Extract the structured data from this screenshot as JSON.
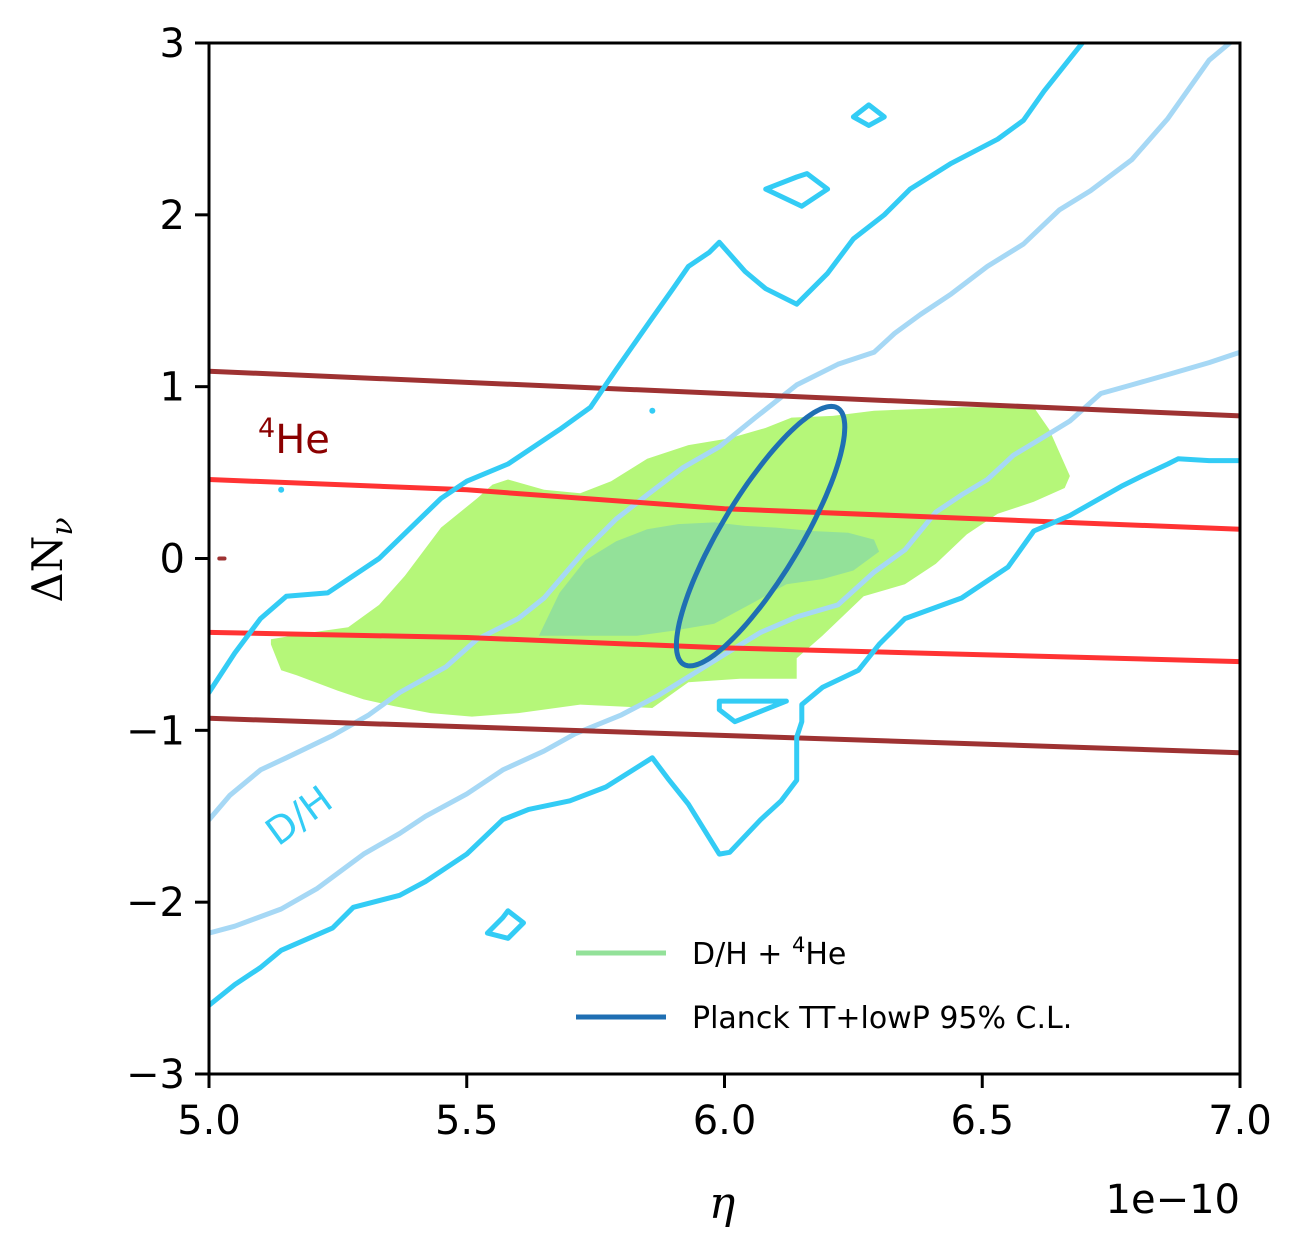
{
  "chart_data": {
    "type": "contour",
    "xlabel": "η",
    "ylabel": "ΔN",
    "ylabel_sub": "ν",
    "x_offset_label": "1e−10",
    "xlim": [
      5.0,
      7.0
    ],
    "ylim": [
      -3,
      3
    ],
    "x_scale": 1e-10,
    "xticks": [
      5.0,
      5.5,
      6.0,
      6.5,
      7.0
    ],
    "xtick_labels": [
      "5.0",
      "5.5",
      "6.0",
      "6.5",
      "7.0"
    ],
    "yticks": [
      -3,
      -2,
      -1,
      0,
      1,
      2,
      3
    ],
    "ytick_labels": [
      "−3",
      "−2",
      "−1",
      "0",
      "1",
      "2",
      "3"
    ],
    "colors": {
      "dh": "#33ccf5",
      "dh_light": "#a6d8f5",
      "he_outer": "#9e3232",
      "he_inner": "#ff3333",
      "combined_outer": "#b5f779",
      "combined_inner": "#93e199",
      "planck": "#1f6fb3",
      "he_label": "#8b0000"
    },
    "annotations": {
      "he_label_sup": "4",
      "he_label": "He",
      "dh_label": "D/H"
    },
    "legend": [
      {
        "name": "D/H + ",
        "sup": "4",
        "tail": "He",
        "color": "#93e199"
      },
      {
        "name": "Planck TT+lowP 95% C.L.",
        "color": "#1f6fb3"
      }
    ],
    "series": {
      "dh_outer_upper": [
        [
          5.0,
          -0.78
        ],
        [
          5.05,
          -0.55
        ],
        [
          5.1,
          -0.35
        ],
        [
          5.15,
          -0.22
        ],
        [
          5.23,
          -0.2
        ],
        [
          5.33,
          0.0
        ],
        [
          5.45,
          0.35
        ],
        [
          5.5,
          0.45
        ],
        [
          5.58,
          0.55
        ],
        [
          5.68,
          0.75
        ],
        [
          5.74,
          0.88
        ],
        [
          5.79,
          1.1
        ],
        [
          5.86,
          1.4
        ],
        [
          5.9,
          1.57
        ],
        [
          5.93,
          1.7
        ],
        [
          5.97,
          1.78
        ],
        [
          5.99,
          1.84
        ],
        [
          6.04,
          1.67
        ],
        [
          6.08,
          1.57
        ],
        [
          6.14,
          1.48
        ],
        [
          6.2,
          1.66
        ],
        [
          6.25,
          1.86
        ],
        [
          6.31,
          2.0
        ],
        [
          6.36,
          2.15
        ],
        [
          6.44,
          2.3
        ],
        [
          6.53,
          2.44
        ],
        [
          6.58,
          2.55
        ],
        [
          6.62,
          2.72
        ],
        [
          6.71,
          3.06
        ]
      ],
      "dh_outer_lower": [
        [
          5.0,
          -2.6
        ],
        [
          5.05,
          -2.48
        ],
        [
          5.1,
          -2.38
        ],
        [
          5.14,
          -2.28
        ],
        [
          5.24,
          -2.15
        ],
        [
          5.28,
          -2.03
        ],
        [
          5.37,
          -1.96
        ],
        [
          5.42,
          -1.88
        ],
        [
          5.5,
          -1.72
        ],
        [
          5.57,
          -1.52
        ],
        [
          5.62,
          -1.46
        ],
        [
          5.7,
          -1.41
        ],
        [
          5.77,
          -1.33
        ],
        [
          5.86,
          -1.16
        ],
        [
          5.89,
          -1.28
        ],
        [
          5.93,
          -1.43
        ],
        [
          5.99,
          -1.72
        ],
        [
          6.01,
          -1.71
        ],
        [
          6.07,
          -1.52
        ],
        [
          6.11,
          -1.41
        ],
        [
          6.14,
          -1.29
        ],
        [
          6.14,
          -1.04
        ],
        [
          6.15,
          -0.95
        ],
        [
          6.15,
          -0.85
        ],
        [
          6.19,
          -0.75
        ],
        [
          6.26,
          -0.65
        ],
        [
          6.3,
          -0.5
        ],
        [
          6.35,
          -0.35
        ],
        [
          6.46,
          -0.23
        ],
        [
          6.55,
          -0.05
        ],
        [
          6.6,
          0.16
        ],
        [
          6.67,
          0.25
        ],
        [
          6.77,
          0.42
        ],
        [
          6.81,
          0.48
        ],
        [
          6.86,
          0.55
        ],
        [
          6.88,
          0.58
        ],
        [
          6.94,
          0.57
        ],
        [
          7.0,
          0.57
        ]
      ],
      "dh_inner_upper": [
        [
          5.0,
          -1.52
        ],
        [
          5.04,
          -1.38
        ],
        [
          5.1,
          -1.23
        ],
        [
          5.15,
          -1.16
        ],
        [
          5.24,
          -1.03
        ],
        [
          5.31,
          -0.91
        ],
        [
          5.37,
          -0.78
        ],
        [
          5.46,
          -0.63
        ],
        [
          5.52,
          -0.47
        ],
        [
          5.6,
          -0.35
        ],
        [
          5.65,
          -0.23
        ],
        [
          5.73,
          0.05
        ],
        [
          5.79,
          0.23
        ],
        [
          5.85,
          0.37
        ],
        [
          5.92,
          0.53
        ],
        [
          5.99,
          0.65
        ],
        [
          6.06,
          0.82
        ],
        [
          6.14,
          1.01
        ],
        [
          6.22,
          1.13
        ],
        [
          6.29,
          1.2
        ],
        [
          6.33,
          1.31
        ],
        [
          6.38,
          1.42
        ],
        [
          6.44,
          1.54
        ],
        [
          6.51,
          1.7
        ],
        [
          6.58,
          1.83
        ],
        [
          6.65,
          2.03
        ],
        [
          6.71,
          2.14
        ],
        [
          6.79,
          2.32
        ],
        [
          6.86,
          2.56
        ],
        [
          6.94,
          2.9
        ],
        [
          7.0,
          3.05
        ]
      ],
      "dh_inner_lower": [
        [
          5.0,
          -2.18
        ],
        [
          5.05,
          -2.14
        ],
        [
          5.14,
          -2.04
        ],
        [
          5.21,
          -1.92
        ],
        [
          5.3,
          -1.72
        ],
        [
          5.37,
          -1.6
        ],
        [
          5.42,
          -1.5
        ],
        [
          5.5,
          -1.37
        ],
        [
          5.57,
          -1.23
        ],
        [
          5.65,
          -1.12
        ],
        [
          5.71,
          -1.02
        ],
        [
          5.8,
          -0.91
        ],
        [
          5.87,
          -0.8
        ],
        [
          5.94,
          -0.67
        ],
        [
          6.01,
          -0.54
        ],
        [
          6.07,
          -0.43
        ],
        [
          6.14,
          -0.34
        ],
        [
          6.22,
          -0.27
        ],
        [
          6.29,
          -0.08
        ],
        [
          6.35,
          0.05
        ],
        [
          6.41,
          0.27
        ],
        [
          6.46,
          0.37
        ],
        [
          6.51,
          0.46
        ],
        [
          6.56,
          0.6
        ],
        [
          6.61,
          0.69
        ],
        [
          6.67,
          0.8
        ],
        [
          6.73,
          0.96
        ],
        [
          6.79,
          1.01
        ],
        [
          6.86,
          1.07
        ],
        [
          6.94,
          1.14
        ],
        [
          7.0,
          1.2
        ]
      ],
      "dh_islands": [
        [
          [
            5.54,
            -2.18
          ],
          [
            5.57,
            -2.09
          ],
          [
            5.58,
            -2.05
          ],
          [
            5.61,
            -2.12
          ],
          [
            5.58,
            -2.21
          ],
          [
            5.54,
            -2.18
          ]
        ],
        [
          [
            6.08,
            2.15
          ],
          [
            6.14,
            2.22
          ],
          [
            6.16,
            2.24
          ],
          [
            6.2,
            2.15
          ],
          [
            6.15,
            2.05
          ],
          [
            6.08,
            2.15
          ]
        ],
        [
          [
            6.25,
            2.57
          ],
          [
            6.28,
            2.64
          ],
          [
            6.31,
            2.57
          ],
          [
            6.28,
            2.52
          ],
          [
            6.25,
            2.57
          ]
        ],
        [
          [
            5.99,
            -0.88
          ],
          [
            5.99,
            -0.83
          ],
          [
            6.12,
            -0.83
          ],
          [
            6.02,
            -0.95
          ],
          [
            5.99,
            -0.88
          ]
        ]
      ],
      "dh_dots": [
        [
          5.86,
          0.86
        ],
        [
          5.14,
          0.4
        ]
      ],
      "he_outer_upper": [
        [
          5.0,
          1.09
        ],
        [
          7.0,
          0.83
        ]
      ],
      "he_outer_lower": [
        [
          5.0,
          -0.93
        ],
        [
          7.0,
          -1.13
        ]
      ],
      "he_inner_upper": [
        [
          5.0,
          0.46
        ],
        [
          5.5,
          0.4
        ],
        [
          6.0,
          0.29
        ],
        [
          6.5,
          0.23
        ],
        [
          7.0,
          0.17
        ]
      ],
      "he_inner_lower": [
        [
          5.0,
          -0.43
        ],
        [
          5.5,
          -0.46
        ],
        [
          6.0,
          -0.52
        ],
        [
          6.5,
          -0.56
        ],
        [
          7.0,
          -0.6
        ]
      ],
      "he_tick": [
        [
          5.02,
          0.0
        ],
        [
          5.03,
          0.0
        ]
      ],
      "combined_outer": [
        [
          5.12,
          -0.47
        ],
        [
          5.2,
          -0.43
        ],
        [
          5.27,
          -0.4
        ],
        [
          5.33,
          -0.27
        ],
        [
          5.38,
          -0.1
        ],
        [
          5.45,
          0.18
        ],
        [
          5.52,
          0.35
        ],
        [
          5.55,
          0.43
        ],
        [
          5.58,
          0.46
        ],
        [
          5.65,
          0.4
        ],
        [
          5.72,
          0.38
        ],
        [
          5.78,
          0.45
        ],
        [
          5.85,
          0.58
        ],
        [
          5.93,
          0.66
        ],
        [
          6.01,
          0.7
        ],
        [
          6.08,
          0.76
        ],
        [
          6.13,
          0.82
        ],
        [
          6.21,
          0.83
        ],
        [
          6.29,
          0.86
        ],
        [
          6.38,
          0.87
        ],
        [
          6.46,
          0.88
        ],
        [
          6.54,
          0.88
        ],
        [
          6.6,
          0.88
        ],
        [
          6.63,
          0.75
        ],
        [
          6.67,
          0.48
        ],
        [
          6.66,
          0.41
        ],
        [
          6.6,
          0.33
        ],
        [
          6.53,
          0.26
        ],
        [
          6.47,
          0.14
        ],
        [
          6.41,
          -0.03
        ],
        [
          6.35,
          -0.15
        ],
        [
          6.27,
          -0.22
        ],
        [
          6.19,
          -0.45
        ],
        [
          6.14,
          -0.58
        ],
        [
          6.14,
          -0.7
        ],
        [
          6.03,
          -0.7
        ],
        [
          5.93,
          -0.72
        ],
        [
          5.86,
          -0.87
        ],
        [
          5.72,
          -0.85
        ],
        [
          5.6,
          -0.9
        ],
        [
          5.51,
          -0.92
        ],
        [
          5.43,
          -0.9
        ],
        [
          5.36,
          -0.86
        ],
        [
          5.3,
          -0.82
        ],
        [
          5.25,
          -0.77
        ],
        [
          5.17,
          -0.68
        ],
        [
          5.14,
          -0.65
        ],
        [
          5.12,
          -0.5
        ]
      ],
      "combined_inner": [
        [
          5.64,
          -0.45
        ],
        [
          5.68,
          -0.2
        ],
        [
          5.73,
          -0.01
        ],
        [
          5.79,
          0.1
        ],
        [
          5.85,
          0.17
        ],
        [
          5.91,
          0.2
        ],
        [
          5.98,
          0.21
        ],
        [
          6.04,
          0.19
        ],
        [
          6.1,
          0.18
        ],
        [
          6.17,
          0.16
        ],
        [
          6.24,
          0.15
        ],
        [
          6.29,
          0.11
        ],
        [
          6.3,
          0.04
        ],
        [
          6.25,
          -0.07
        ],
        [
          6.19,
          -0.12
        ],
        [
          6.12,
          -0.15
        ],
        [
          6.06,
          -0.25
        ],
        [
          5.98,
          -0.38
        ],
        [
          5.9,
          -0.42
        ],
        [
          5.83,
          -0.45
        ],
        [
          5.76,
          -0.45
        ],
        [
          5.7,
          -0.45
        ],
        [
          5.64,
          -0.45
        ]
      ],
      "planck_ellipse": {
        "center": [
          6.07,
          0.13
        ],
        "a": 0.29,
        "b": 0.077,
        "angle_deg": 59
      }
    }
  }
}
